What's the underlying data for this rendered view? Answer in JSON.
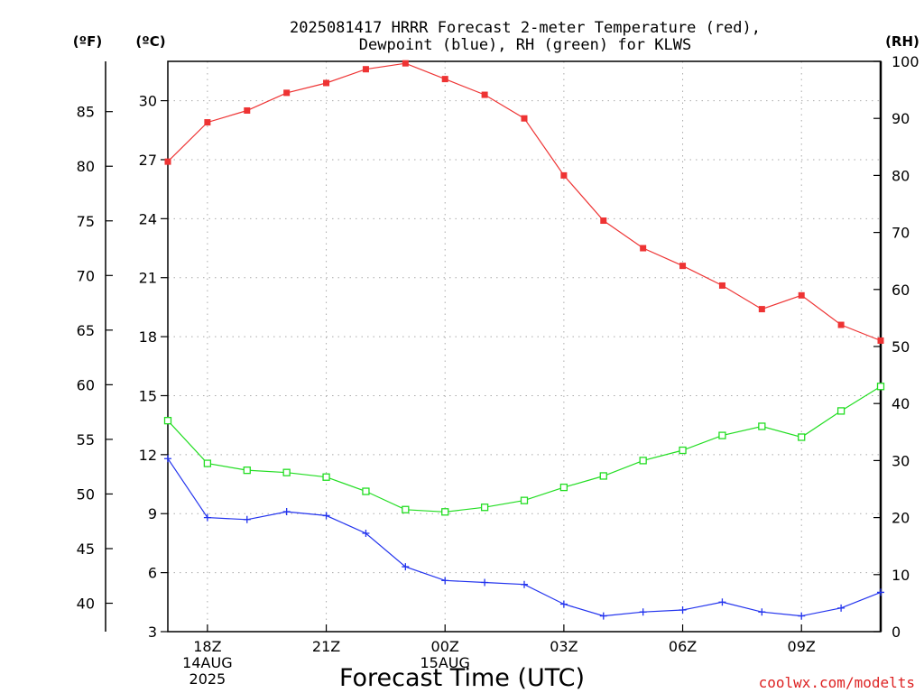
{
  "chart_data": {
    "type": "line",
    "title_lines": [
      "2025081417 HRRR Forecast 2-meter Temperature (red),",
      "Dewpoint (blue), RH (green) for KLWS"
    ],
    "xlabel": "Forecast Time (UTC)",
    "watermark": "coolwx.com/modelts",
    "unit_labels": {
      "fahrenheit": "(ºF)",
      "celsius": "(ºC)",
      "rh": "(RH)"
    },
    "x_hours": [
      17,
      18,
      19,
      20,
      21,
      22,
      23,
      24,
      25,
      26,
      27,
      28,
      29,
      30,
      31,
      32,
      33,
      34,
      35
    ],
    "x_range": [
      17,
      35
    ],
    "x_ticks": [
      {
        "hour": 18,
        "lines": [
          "18Z",
          "14AUG",
          "2025"
        ]
      },
      {
        "hour": 21,
        "lines": [
          "21Z"
        ]
      },
      {
        "hour": 24,
        "lines": [
          "00Z",
          "15AUG"
        ]
      },
      {
        "hour": 27,
        "lines": [
          "03Z"
        ]
      },
      {
        "hour": 30,
        "lines": [
          "06Z"
        ]
      },
      {
        "hour": 33,
        "lines": [
          "09Z"
        ]
      }
    ],
    "c_axis": {
      "range": [
        3,
        32
      ],
      "ticks": [
        3,
        6,
        9,
        12,
        15,
        18,
        21,
        24,
        27,
        30
      ]
    },
    "f_axis": {
      "ticks": [
        40,
        45,
        50,
        55,
        60,
        65,
        70,
        75,
        80,
        85
      ]
    },
    "rh_axis": {
      "range": [
        0,
        100
      ],
      "ticks": [
        0,
        10,
        20,
        30,
        40,
        50,
        60,
        70,
        80,
        90,
        100
      ]
    },
    "grid": true,
    "series": [
      {
        "axis": "celsius",
        "color": "#ee3333",
        "marker": "filled-square",
        "values": [
          26.9,
          28.9,
          29.5,
          30.4,
          30.9,
          31.6,
          31.9,
          31.1,
          30.3,
          29.1,
          26.2,
          23.9,
          22.5,
          21.6,
          20.6,
          19.4,
          20.1,
          18.6,
          17.8
        ]
      },
      {
        "axis": "celsius",
        "color": "#2233ee",
        "marker": "plus",
        "values": [
          11.8,
          8.8,
          8.7,
          9.1,
          8.9,
          8.0,
          6.3,
          5.6,
          5.5,
          5.4,
          4.4,
          3.8,
          4.0,
          4.1,
          4.5,
          4.0,
          3.8,
          4.2,
          5.0
        ]
      },
      {
        "axis": "rh",
        "color": "#22dd22",
        "marker": "open-square",
        "values": [
          37,
          29.5,
          28.3,
          27.9,
          27.1,
          24.6,
          21.4,
          21.0,
          21.8,
          23.0,
          25.3,
          27.3,
          30.0,
          31.8,
          34.4,
          36.0,
          34.1,
          38.7,
          43.0
        ]
      }
    ]
  }
}
